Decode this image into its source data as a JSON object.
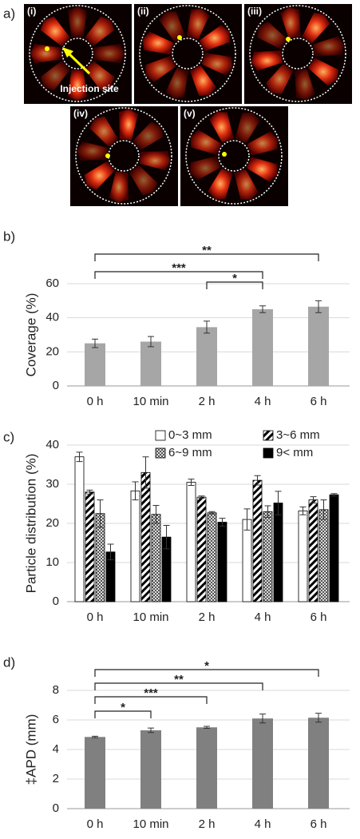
{
  "panel_a": {
    "label": "a)",
    "images": [
      "(i)",
      "(ii)",
      "(iii)",
      "(iv)",
      "(v)"
    ],
    "annotation": "Injection site"
  },
  "chart_data": [
    {
      "type": "bar",
      "panel_label": "b)",
      "ylabel": "Coverage (%)",
      "categories": [
        "0 h",
        "10 min",
        "2 h",
        "4 h",
        "6 h"
      ],
      "series": [
        {
          "color": "#a6a6a6",
          "pattern": "solid",
          "values": [
            25,
            26,
            34.5,
            45,
            46.5
          ],
          "errors": [
            2.5,
            3,
            3.5,
            2,
            3.5
          ]
        }
      ],
      "ylim": [
        0,
        60
      ],
      "yticks": [
        0,
        20,
        40,
        60
      ],
      "grid": true,
      "significance": [
        {
          "from": "0 h",
          "to": "6 h",
          "label": "**"
        },
        {
          "from": "0 h",
          "to": "4 h",
          "label": "***"
        },
        {
          "from": "2 h",
          "to": "4 h",
          "label": "*"
        }
      ]
    },
    {
      "type": "bar",
      "panel_label": "c)",
      "ylabel": "Particle distribution (%)",
      "categories": [
        "0 h",
        "10 min",
        "2 h",
        "4 h",
        "6 h"
      ],
      "series": [
        {
          "name": "0~3 mm",
          "color": "#ffffff",
          "pattern": "solid",
          "values": [
            37,
            28.3,
            30.5,
            21,
            23.2
          ],
          "errors": [
            1.2,
            2.3,
            0.8,
            2.7,
            1
          ]
        },
        {
          "name": "3~6 mm",
          "color": "#000000",
          "pattern": "hatch",
          "values": [
            28,
            33,
            26.7,
            31,
            26
          ],
          "errors": [
            0.5,
            4,
            0.3,
            1.2,
            0.8
          ]
        },
        {
          "name": "6~9 mm",
          "color": "#808080",
          "pattern": "check",
          "values": [
            22.5,
            22.3,
            22.7,
            23,
            23.5
          ],
          "errors": [
            3.5,
            2.3,
            0.3,
            1.5,
            2.5
          ]
        },
        {
          "name": "9< mm",
          "color": "#000000",
          "pattern": "solid",
          "values": [
            12.7,
            16.5,
            20.3,
            25.2,
            27.3
          ],
          "errors": [
            2,
            3,
            1,
            3,
            0.3
          ]
        }
      ],
      "ylim": [
        0,
        40
      ],
      "yticks": [
        0,
        10,
        20,
        30,
        40
      ],
      "grid": true,
      "legend": "top-right",
      "significance": []
    },
    {
      "type": "bar",
      "panel_label": "d)",
      "ylabel": "‡APD (mm)",
      "categories": [
        "0 h",
        "10 min",
        "2 h",
        "4 h",
        "6 h"
      ],
      "series": [
        {
          "color": "#808080",
          "pattern": "solid",
          "values": [
            4.85,
            5.3,
            5.5,
            6.1,
            6.15
          ],
          "errors": [
            0.05,
            0.15,
            0.07,
            0.3,
            0.3
          ]
        }
      ],
      "ylim": [
        0,
        8
      ],
      "yticks": [
        0,
        2,
        4,
        6,
        8
      ],
      "grid": true,
      "significance": [
        {
          "from": "0 h",
          "to": "6 h",
          "label": "*"
        },
        {
          "from": "0 h",
          "to": "4 h",
          "label": "**"
        },
        {
          "from": "0 h",
          "to": "2 h",
          "label": "***"
        },
        {
          "from": "0 h",
          "to": "10 min",
          "label": "*"
        }
      ]
    }
  ]
}
